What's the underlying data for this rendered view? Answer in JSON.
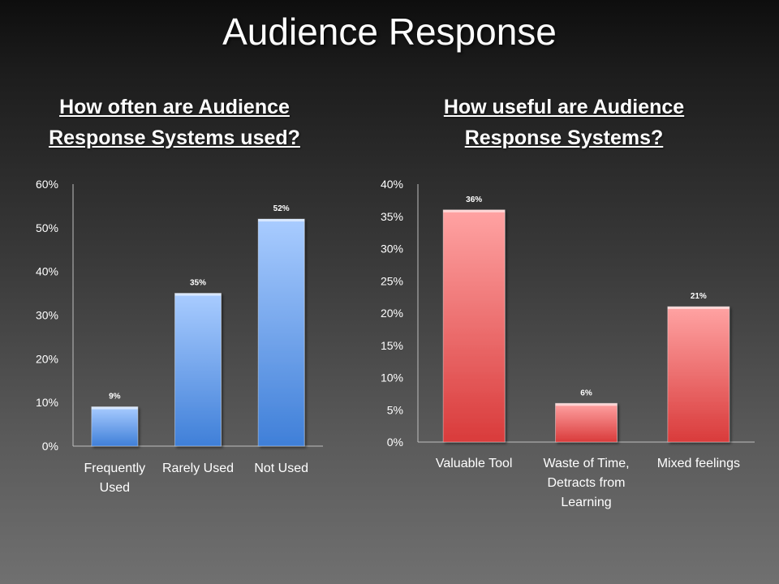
{
  "slide": {
    "title": "Audience Response"
  },
  "colors": {
    "blue_top": "#a9ccff",
    "blue_bottom": "#3f7fd8",
    "red_top": "#ffa3a3",
    "red_bottom": "#d93b3b",
    "axis": "#bfbfbf"
  },
  "chart_data": [
    {
      "type": "bar",
      "title": "How often are Audience Response Systems used?",
      "categories": [
        [
          "Frequently",
          "Used"
        ],
        [
          "Rarely Used"
        ],
        [
          "Not Used"
        ]
      ],
      "values": [
        9,
        35,
        52
      ],
      "value_labels": [
        "9%",
        "35%",
        "52%"
      ],
      "yticks": [
        "0%",
        "10%",
        "20%",
        "30%",
        "40%",
        "50%",
        "60%"
      ],
      "ylim": [
        0,
        60
      ],
      "xlabel": "",
      "ylabel": "",
      "grid": false,
      "color": "blue"
    },
    {
      "type": "bar",
      "title": "How useful are Audience Response Systems?",
      "categories": [
        [
          "Valuable Tool"
        ],
        [
          "Waste of Time,",
          "Detracts from",
          "Learning"
        ],
        [
          "Mixed feelings"
        ]
      ],
      "values": [
        36,
        6,
        21
      ],
      "value_labels": [
        "36%",
        "6%",
        "21%"
      ],
      "yticks": [
        "0%",
        "5%",
        "10%",
        "15%",
        "20%",
        "25%",
        "30%",
        "35%",
        "40%"
      ],
      "ylim": [
        0,
        40
      ],
      "xlabel": "",
      "ylabel": "",
      "grid": false,
      "color": "red"
    }
  ]
}
